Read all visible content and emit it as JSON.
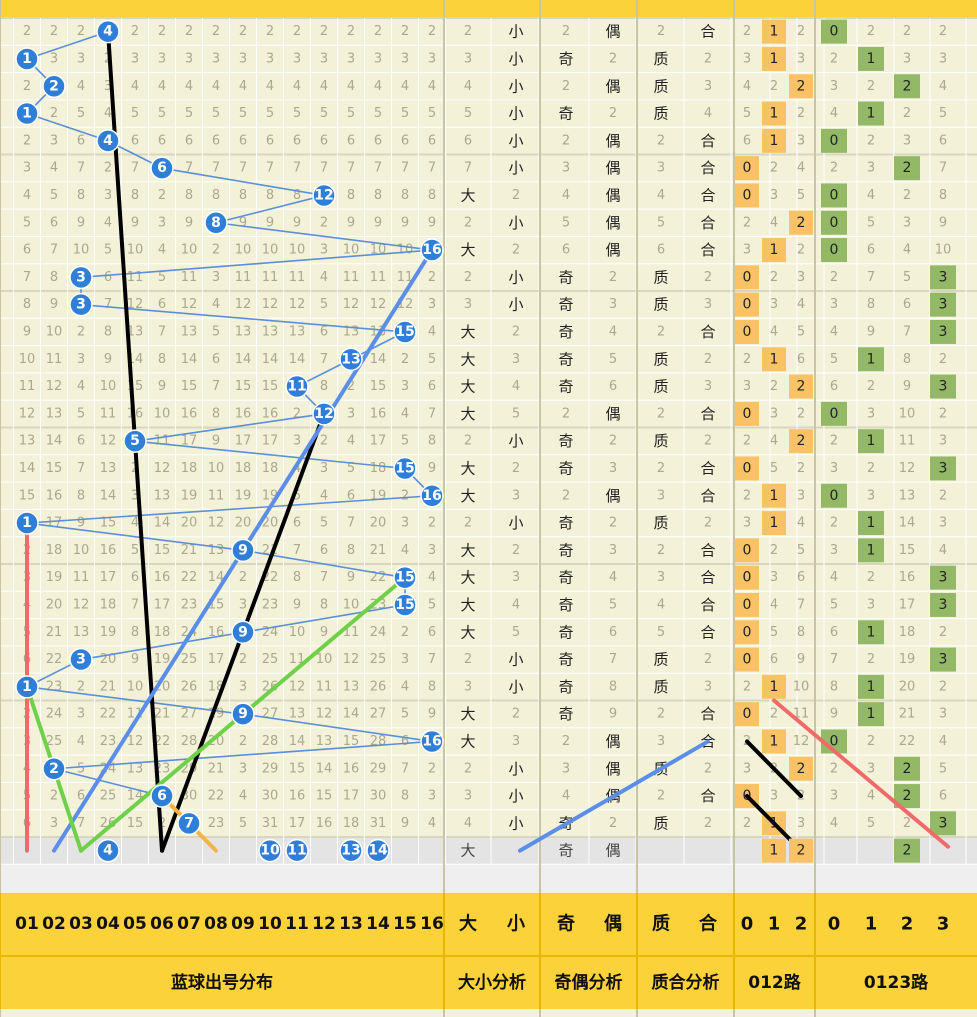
{
  "chart_data": {
    "type": "table",
    "title": "",
    "section_labels": [
      "蓝球出号分布",
      "大小分析",
      "奇偶分析",
      "质合分析",
      "012路",
      "0123路"
    ],
    "column_headers": [
      "01",
      "02",
      "03",
      "04",
      "05",
      "06",
      "07",
      "08",
      "09",
      "10",
      "11",
      "12",
      "13",
      "14",
      "15",
      "16",
      "大",
      "小",
      "奇",
      "偶",
      "质",
      "合",
      "0",
      "1",
      "2",
      "0",
      "1",
      "2",
      "3"
    ],
    "draws": [
      4,
      1,
      2,
      1,
      4,
      6,
      12,
      8,
      16,
      3,
      3,
      15,
      13,
      11,
      12,
      5,
      15,
      16,
      1,
      9,
      15,
      15,
      9,
      3,
      1,
      9,
      16,
      2,
      6,
      7
    ],
    "size": [
      "小",
      "小",
      "小",
      "小",
      "小",
      "小",
      "大",
      "小",
      "大",
      "小",
      "小",
      "大",
      "大",
      "大",
      "大",
      "小",
      "大",
      "大",
      "小",
      "大",
      "大",
      "大",
      "大",
      "小",
      "小",
      "大",
      "大",
      "小",
      "小",
      "小"
    ],
    "parity": [
      "偶",
      "奇",
      "偶",
      "奇",
      "偶",
      "偶",
      "偶",
      "偶",
      "偶",
      "奇",
      "奇",
      "奇",
      "奇",
      "奇",
      "偶",
      "奇",
      "奇",
      "偶",
      "奇",
      "奇",
      "奇",
      "奇",
      "奇",
      "奇",
      "奇",
      "奇",
      "偶",
      "偶",
      "偶",
      "奇"
    ],
    "primality": [
      "合",
      "质",
      "质",
      "质",
      "合",
      "合",
      "合",
      "合",
      "合",
      "质",
      "质",
      "合",
      "质",
      "质",
      "合",
      "质",
      "合",
      "合",
      "质",
      "合",
      "合",
      "合",
      "合",
      "质",
      "质",
      "合",
      "合",
      "质",
      "合",
      "质"
    ],
    "mod3": [
      1,
      1,
      2,
      1,
      1,
      0,
      0,
      2,
      1,
      0,
      0,
      0,
      1,
      2,
      0,
      2,
      0,
      1,
      1,
      0,
      0,
      0,
      0,
      0,
      1,
      0,
      1,
      2,
      0,
      1
    ],
    "mod4": [
      0,
      1,
      2,
      1,
      0,
      2,
      0,
      0,
      0,
      3,
      3,
      3,
      1,
      3,
      0,
      1,
      3,
      0,
      1,
      1,
      3,
      3,
      1,
      3,
      1,
      1,
      0,
      2,
      2,
      3
    ],
    "forecast": {
      "balls": [
        4,
        10,
        11,
        13,
        14
      ],
      "size": "大",
      "parity": [
        "奇",
        "偶"
      ],
      "mod3": [
        1,
        2
      ],
      "mod4": [
        2
      ]
    },
    "trend_lines": [
      {
        "color": "#000000",
        "from_col": 4,
        "from_row": 0,
        "to_col": 6,
        "to_row": 30
      },
      {
        "color": "#000000",
        "from_col": 6,
        "from_row": 30,
        "to_col": 12,
        "to_row": 14
      },
      {
        "color": "#5b8ee8",
        "from_col": 2,
        "from_row": 30,
        "to_col": 16,
        "to_row": 8
      },
      {
        "color": "#6fd04a",
        "from_col": 3,
        "from_row": 30,
        "to_col": 1,
        "to_row": 24
      },
      {
        "color": "#6fd04a",
        "from_col": 3,
        "from_row": 30,
        "to_col": 15,
        "to_row": 20
      },
      {
        "color": "#f06a6a",
        "from_col": 1,
        "from_row": 18,
        "to_col": 1,
        "to_row": 30
      },
      {
        "color": "#f5b24a",
        "from_col": 6,
        "from_row": 28,
        "to_col": 8,
        "to_row": 30
      }
    ],
    "colors": {
      "ball": "#2f7fd8",
      "link": "#5b8fd8",
      "header": "#fcd23a",
      "mod3_hit": "#f9c265",
      "mod4_hit": "#93b967",
      "background": "#f3f2d8"
    }
  }
}
